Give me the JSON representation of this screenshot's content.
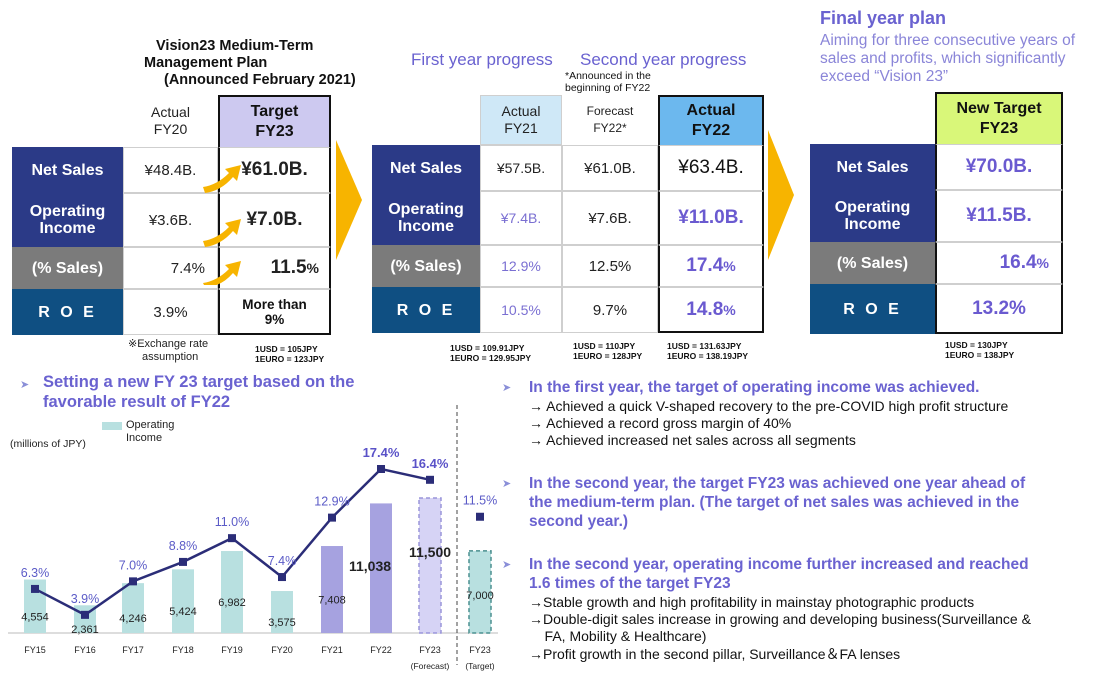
{
  "plan": {
    "title_line1": "Vision23 Medium-Term",
    "title_line2": "Management Plan",
    "title_line3": "(Announced February 2021)",
    "col_actual_fy20": [
      "Actual",
      "FY20"
    ],
    "col_target_fy23": [
      "Target",
      "FY23"
    ],
    "rows": [
      {
        "label": [
          "Net Sales"
        ],
        "fy20": "¥48.4B.",
        "fy23": "¥61.0B."
      },
      {
        "label": [
          "Operating",
          "Income"
        ],
        "fy20": "¥3.6B.",
        "fy23": "¥7.0B."
      },
      {
        "label": [
          "(% Sales)"
        ],
        "fy20": "7.4%",
        "fy23": "11.5",
        "fy23_unit": "%"
      },
      {
        "label": [
          "R O E"
        ],
        "fy20": "3.9%",
        "fy23": "More than",
        "fy23_line2": "9%"
      }
    ],
    "note": [
      "※Exchange rate",
      "assumption"
    ],
    "fx": "1USD = 105JPY\n1EURO = 123JPY"
  },
  "progress": {
    "first_title": "First year progress",
    "second_title": "Second year progress",
    "second_note": "*Announced in the\nbeginning of FY22",
    "col_actual_fy21": [
      "Actual",
      "FY21"
    ],
    "col_forecast_fy22": [
      "Forecast",
      "FY22*"
    ],
    "col_actual_fy22": [
      "Actual",
      "FY22"
    ],
    "rows": [
      {
        "label": [
          "Net Sales"
        ],
        "fy21": "¥57.5B.",
        "f22": "¥61.0B.",
        "a22": "¥63.4B."
      },
      {
        "label": [
          "Operating",
          "Income"
        ],
        "fy21": "¥7.4B.",
        "f22": "¥7.6B.",
        "a22": "¥11.0B."
      },
      {
        "label": [
          "(% Sales)"
        ],
        "fy21": "12.9%",
        "f22": "12.5%",
        "a22": "17.4",
        "a22_unit": "%"
      },
      {
        "label": [
          "R O E"
        ],
        "fy21": "10.5%",
        "f22": "9.7%",
        "a22": "14.8",
        "a22_unit": "%"
      }
    ],
    "fx_fy21": "1USD = 109.91JPY\n1EURO = 129.95JPY",
    "fx_f22": "1USD = 110JPY\n1EURO = 128JPY",
    "fx_a22": "1USD = 131.63JPY\n1EURO = 138.19JPY"
  },
  "final": {
    "title": "Final year plan",
    "subtitle_lines": [
      "Aiming for three consecutive years of",
      "sales and profits, which significantly",
      "exceed “Vision 23”"
    ],
    "col_new_target": [
      "New Target",
      "FY23"
    ],
    "rows": [
      {
        "label": [
          "Net Sales"
        ],
        "value": "¥70.0B."
      },
      {
        "label": [
          "Operating",
          "Income"
        ],
        "value": "¥11.5B."
      },
      {
        "label": [
          "(% Sales)"
        ],
        "value": "16.4",
        "unit": "%"
      },
      {
        "label": [
          "R O E"
        ],
        "value": "13.2%"
      }
    ],
    "fx": "1USD = 130JPY\n1EURO = 138JPY"
  },
  "chart_section": {
    "heading": [
      "Setting a new FY 23 target based on the",
      "favorable result of FY22"
    ],
    "legend": [
      "Operating",
      "Income"
    ],
    "unit": "(millions of JPY)"
  },
  "chart_data": {
    "type": "bar",
    "categories": [
      "FY15",
      "FY16",
      "FY17",
      "FY18",
      "FY19",
      "FY20",
      "FY21",
      "FY22",
      "FY23",
      "FY23"
    ],
    "category_sub": [
      "",
      "",
      "",
      "",
      "",
      "",
      "",
      "",
      "(Forecast)",
      "(Target)"
    ],
    "series": [
      {
        "name": "Operating Income",
        "values": [
          4554,
          2361,
          4246,
          5424,
          6982,
          3575,
          7408,
          11038,
          11500,
          7000
        ]
      }
    ],
    "value_labels": [
      "4,554",
      "2,361",
      "4,246",
      "5,424",
      "6,982",
      "3,575",
      "7,408",
      "11,038",
      "11,500",
      "7,000"
    ],
    "margin_values": [
      6.3,
      3.9,
      7.0,
      8.8,
      11.0,
      7.4,
      12.9,
      17.4,
      16.4,
      11.5
    ],
    "margin_labels": [
      "6.3%",
      "3.9%",
      "7.0%",
      "8.8%",
      "11.0%",
      "7.4%",
      "12.9%",
      "17.4%",
      "16.4%",
      "11.5%"
    ]
  },
  "bullets": [
    {
      "head": "In the first year, the target of operating income was achieved.",
      "subs": [
        "→ Achieved a quick V-shaped recovery to the pre-COVID high profit structure",
        "→ Achieved a record gross margin of 40%",
        "→ Achieved increased net sales across all segments"
      ]
    },
    {
      "head_lines": [
        "In the second year, the target FY23 was achieved one year ahead of",
        "the medium-term plan. (The target of net sales was achieved in the",
        "second year.)"
      ]
    },
    {
      "head_lines": [
        "In the second year, operating income further increased and reached",
        "1.6 times of the target FY23"
      ],
      "subs": [
        "→Stable growth and high profitability in mainstay photographic products",
        "→Double-digit sales increase in growing and developing business(Surveillance &",
        "    FA, Mobility & Healthcare)",
        "→Profit growth in the second pillar, Surveillance＆FA lenses"
      ]
    }
  ],
  "colors": {
    "navy": "#2b3a87",
    "teal": "#0f4f82",
    "grey": "#7b7b7b",
    "purple": "#6a5ad0",
    "light_blue": "#cfe8f7",
    "target_lilac": "#cdc9f0",
    "new_target_green": "#d9f779",
    "bar_teal": "#b8e0e0",
    "bar_purple": "#a6a2e0",
    "arrow_orange": "#f7b400"
  }
}
